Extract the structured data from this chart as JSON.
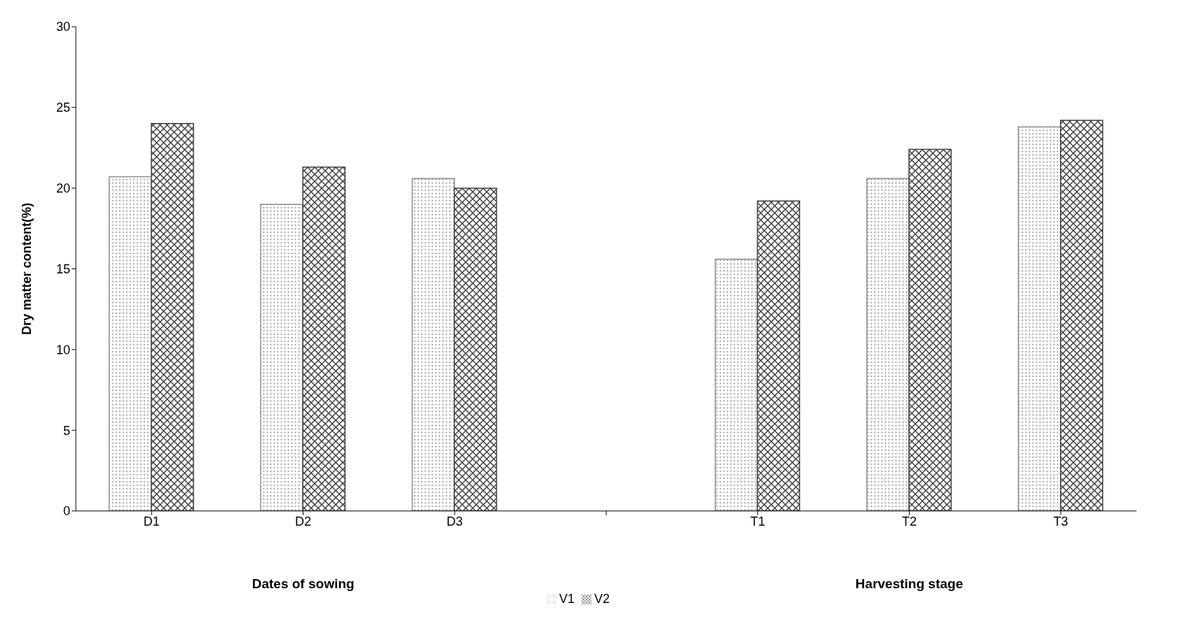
{
  "chart_data": {
    "type": "bar",
    "ylabel": "Dry matter content(%)",
    "categories": [
      "D1",
      "D2",
      "D3",
      null,
      "T1",
      "T2",
      "T3"
    ],
    "series": [
      {
        "name": "V1",
        "color": "#8c8c8c",
        "values": [
          20.7,
          19.0,
          20.6,
          null,
          15.6,
          20.6,
          23.8
        ]
      },
      {
        "name": "V2",
        "color": "#404040",
        "values": [
          24.0,
          21.3,
          20.0,
          null,
          19.2,
          22.4,
          24.2
        ]
      }
    ],
    "annotations": [
      "Dates of sowing",
      "Harvesting stage"
    ],
    "ylim": [
      0,
      30
    ],
    "yticks": [
      0,
      5,
      10,
      15,
      20,
      25,
      30
    ],
    "grid": false,
    "legend": "bottom"
  }
}
